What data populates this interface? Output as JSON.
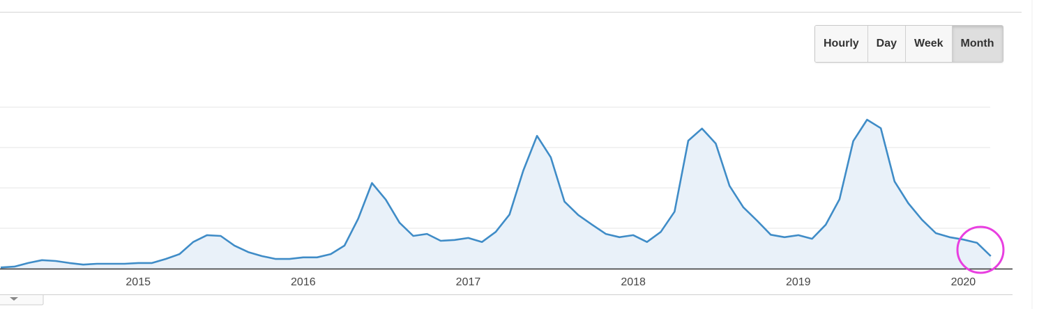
{
  "chart_data": {
    "type": "line",
    "categories": [
      null,
      null,
      null,
      null,
      null,
      null,
      null,
      null,
      null,
      null,
      "2015",
      null,
      null,
      null,
      null,
      null,
      null,
      null,
      null,
      null,
      null,
      null,
      "2016",
      null,
      null,
      null,
      null,
      null,
      null,
      null,
      null,
      null,
      null,
      null,
      "2017",
      null,
      null,
      null,
      null,
      null,
      null,
      null,
      null,
      null,
      null,
      null,
      "2018",
      null,
      null,
      null,
      null,
      null,
      null,
      null,
      null,
      null,
      null,
      null,
      "2019",
      null,
      null,
      null,
      null,
      null,
      null,
      null,
      null,
      null,
      null,
      null,
      "2020",
      null,
      null
    ],
    "values": [
      0.03,
      0.05,
      0.14,
      0.21,
      0.19,
      0.14,
      0.1,
      0.12,
      0.12,
      0.12,
      0.14,
      0.14,
      0.24,
      0.36,
      0.66,
      0.83,
      0.81,
      0.57,
      0.41,
      0.31,
      0.24,
      0.24,
      0.28,
      0.28,
      0.36,
      0.57,
      1.24,
      2.12,
      1.71,
      1.14,
      0.81,
      0.86,
      0.69,
      0.71,
      0.76,
      0.66,
      0.91,
      1.34,
      2.43,
      3.29,
      2.76,
      1.66,
      1.33,
      1.09,
      0.86,
      0.78,
      0.83,
      0.66,
      0.91,
      1.41,
      3.17,
      3.47,
      3.1,
      2.05,
      1.52,
      1.19,
      0.84,
      0.78,
      0.83,
      0.74,
      1.09,
      1.72,
      3.16,
      3.69,
      3.48,
      2.16,
      1.62,
      1.21,
      0.88,
      0.78,
      0.72,
      0.64,
      0.31
    ],
    "color": "#3f8cc7",
    "ylim": [
      0,
      4
    ],
    "yticks": [
      1,
      2,
      3,
      4
    ],
    "grid": true,
    "buttons": [
      "Hourly",
      "Day",
      "Week",
      "Month"
    ]
  }
}
